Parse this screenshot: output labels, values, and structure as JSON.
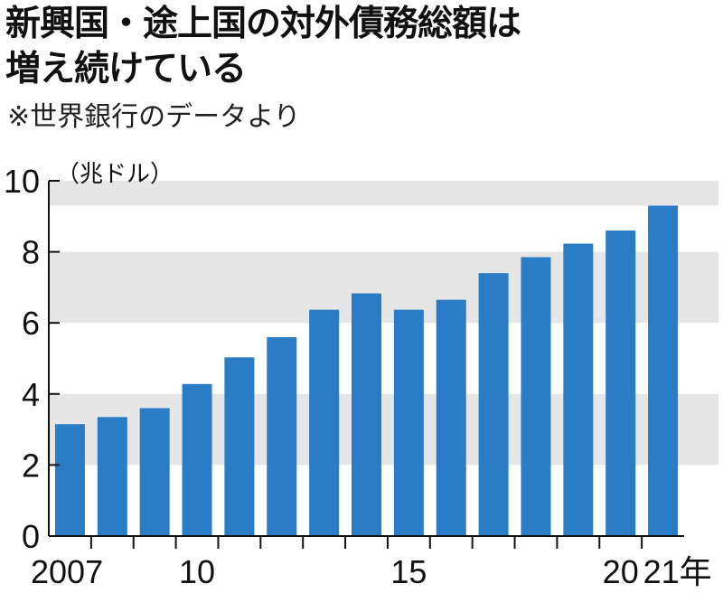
{
  "header": {
    "title_line1": "新興国・途上国の対外債務総額は",
    "title_line2": "増え続けている",
    "source": "※世界銀行のデータより"
  },
  "chart_data": {
    "type": "bar",
    "title": "新興国・途上国の対外債務総額は増え続けている",
    "unit_label": "（兆ドル）",
    "categories": [
      "2007",
      "2008",
      "2009",
      "2010",
      "2011",
      "2012",
      "2013",
      "2014",
      "2015",
      "2016",
      "2017",
      "2018",
      "2019",
      "2020",
      "2021"
    ],
    "x_tick_labels": [
      "2007",
      "",
      "",
      "10",
      "",
      "",
      "",
      "",
      "15",
      "",
      "",
      "",
      "",
      "20",
      "21年"
    ],
    "values": [
      3.15,
      3.35,
      3.6,
      4.28,
      5.03,
      5.6,
      6.37,
      6.83,
      6.37,
      6.65,
      7.4,
      7.85,
      8.23,
      8.6,
      9.3
    ],
    "ylim": [
      0,
      10
    ],
    "yticks": [
      0,
      2,
      4,
      6,
      8,
      10
    ],
    "grid": "alternating horizontal bands",
    "colors": {
      "bar": "#2a7cc6",
      "band": "#e6e6e6"
    }
  }
}
